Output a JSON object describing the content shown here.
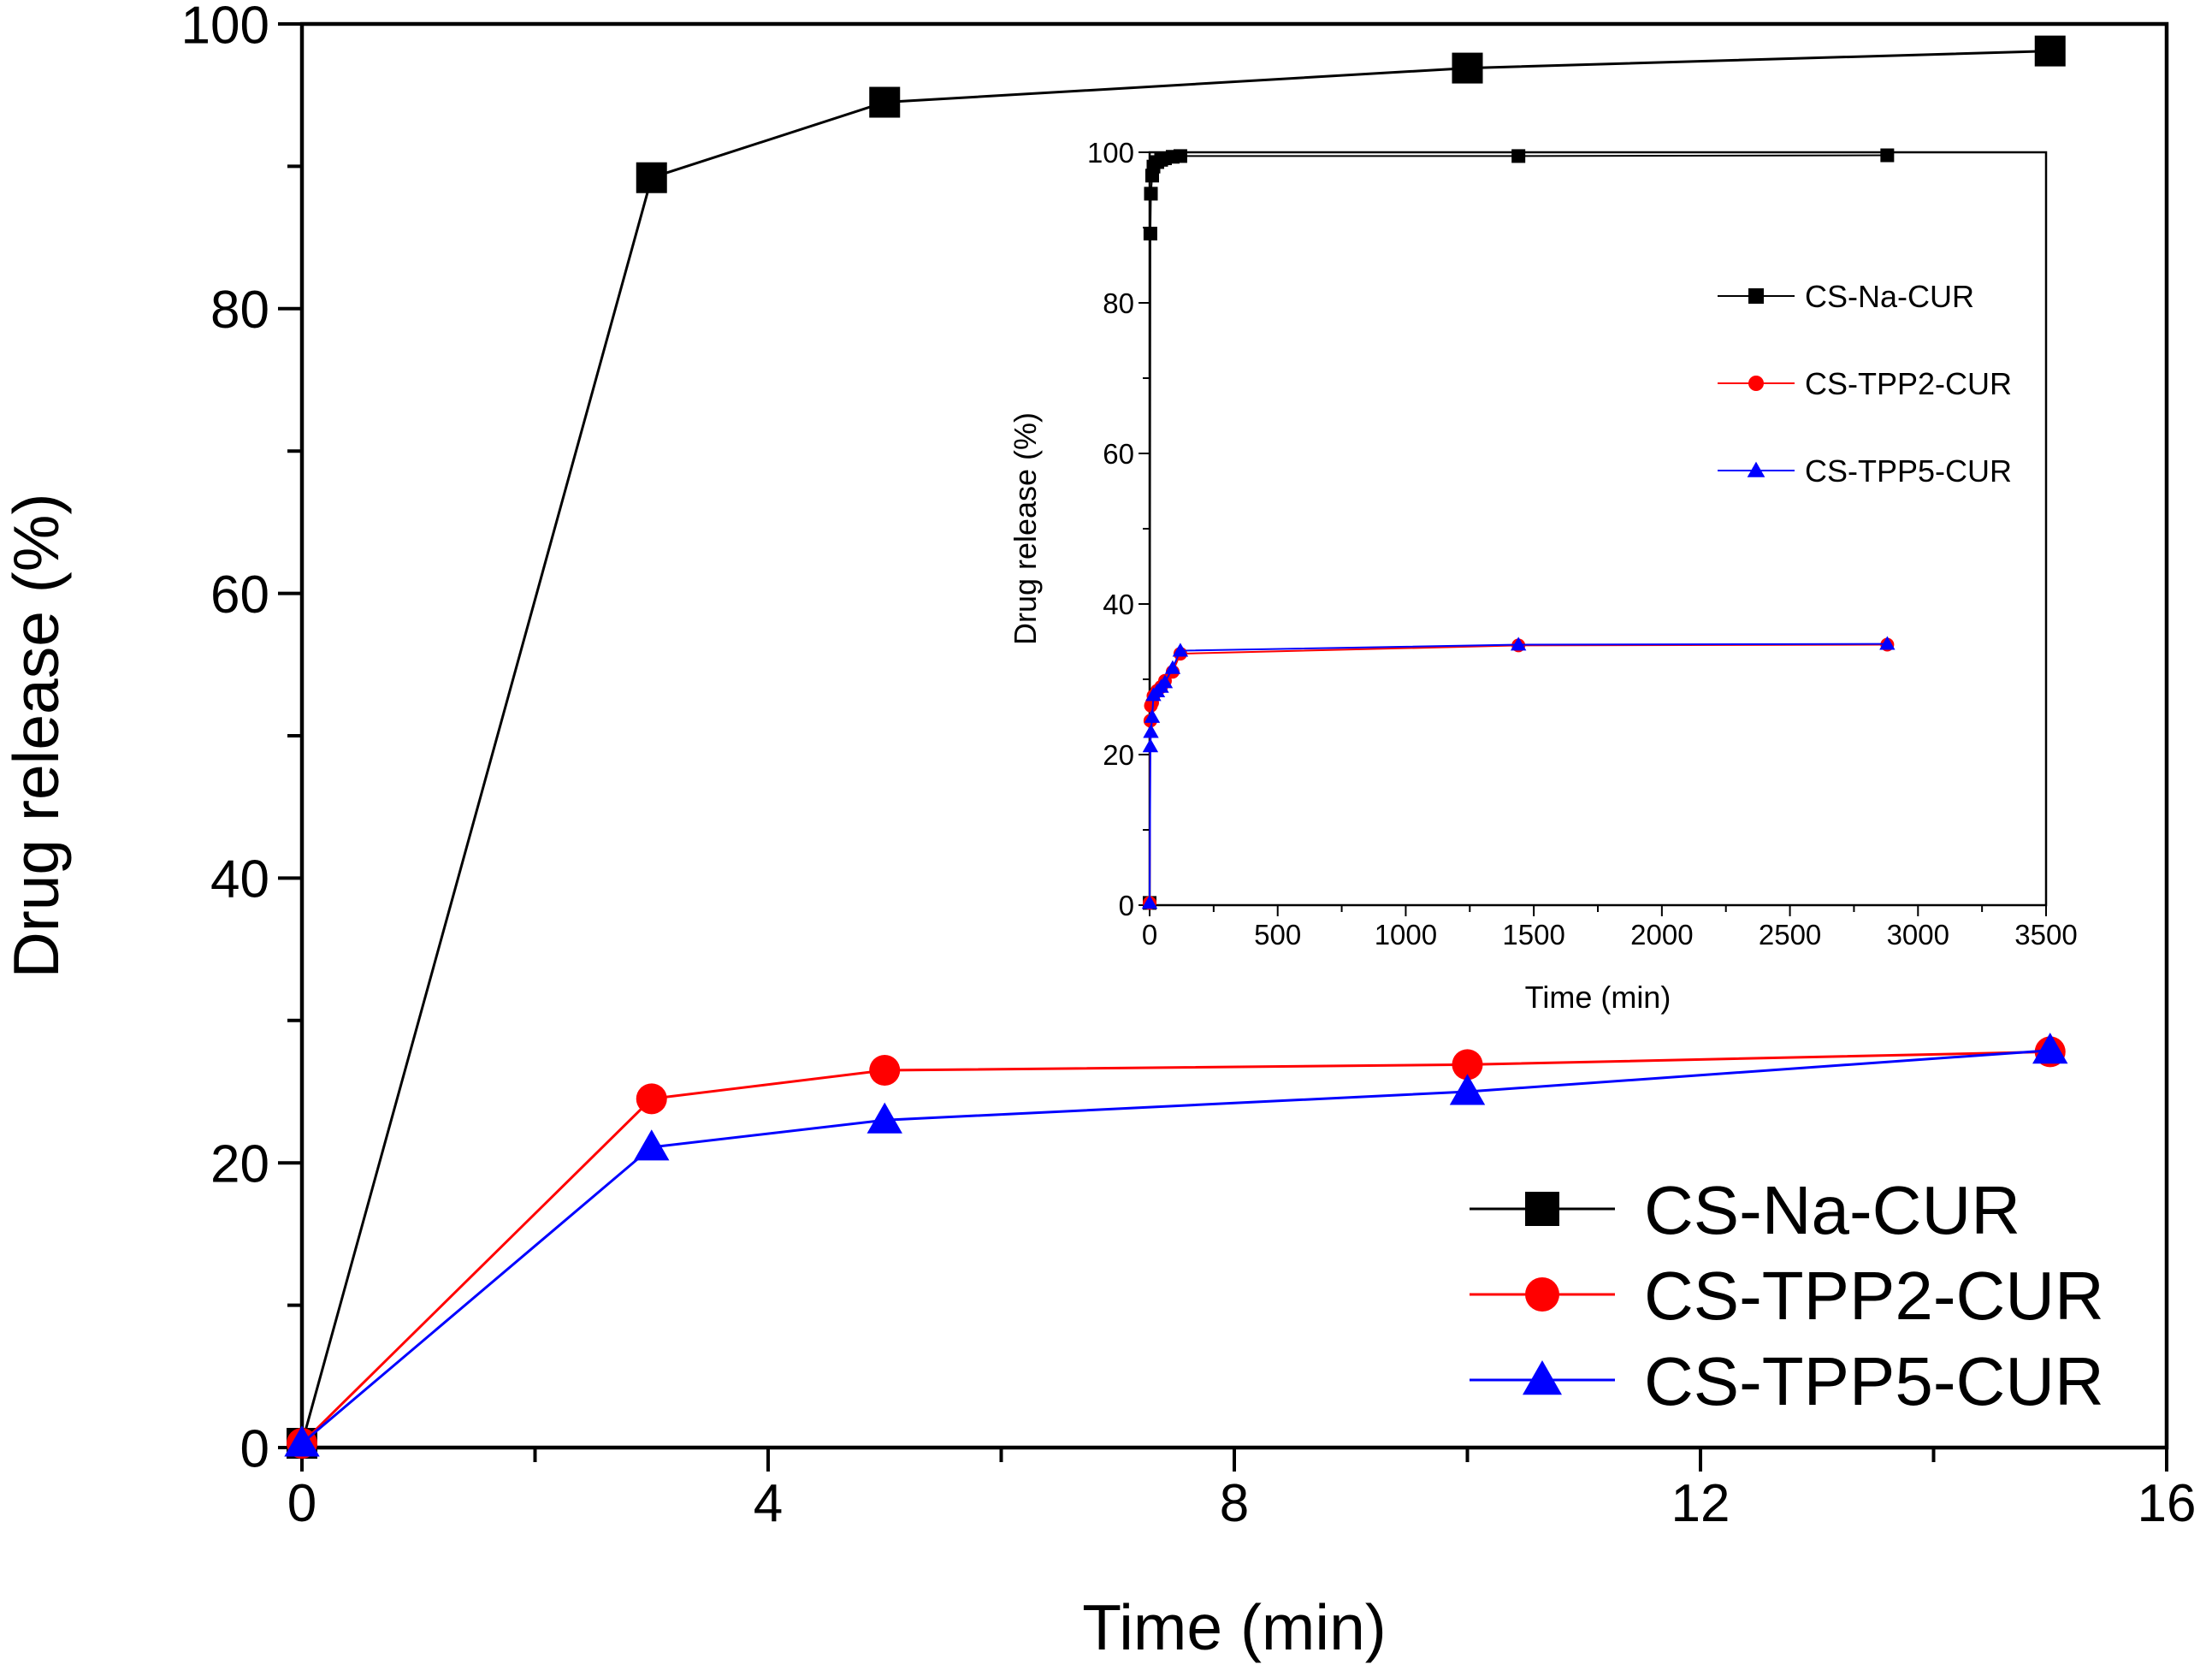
{
  "chart_data": [
    {
      "type": "line",
      "xlabel": "Time (min)",
      "ylabel": "Drug release (%)",
      "xlim": [
        0,
        16
      ],
      "ylim": [
        0,
        100
      ],
      "x_ticks": [
        0,
        4,
        8,
        12,
        16
      ],
      "y_ticks": [
        0,
        20,
        40,
        60,
        80,
        100
      ],
      "grid": false,
      "legend_position": "bottom-right",
      "series": [
        {
          "name": "CS-Na-CUR",
          "color": "#000000",
          "marker": "square",
          "x": [
            0,
            3,
            5,
            10,
            15
          ],
          "y": [
            0.3,
            89.2,
            94.5,
            96.9,
            98.1
          ]
        },
        {
          "name": "CS-TPP2-CUR",
          "color": "#ff0000",
          "marker": "circle",
          "x": [
            0,
            3,
            5,
            10,
            15
          ],
          "y": [
            0.3,
            24.5,
            26.5,
            26.9,
            27.8
          ]
        },
        {
          "name": "CS-TPP5-CUR",
          "color": "#0000ff",
          "marker": "triangle",
          "x": [
            0,
            3,
            5,
            10,
            15
          ],
          "y": [
            0.3,
            21.1,
            23.0,
            25.0,
            27.9
          ]
        }
      ]
    },
    {
      "type": "line",
      "role": "inset",
      "xlabel": "Time (min)",
      "ylabel": "Drug release (%)",
      "xlim": [
        0,
        3500
      ],
      "ylim": [
        0,
        100
      ],
      "x_ticks": [
        0,
        500,
        1000,
        1500,
        2000,
        2500,
        3000,
        3500
      ],
      "y_ticks": [
        0,
        20,
        40,
        60,
        80,
        100
      ],
      "grid": false,
      "legend_position": "top-right",
      "series": [
        {
          "name": "CS-Na-CUR",
          "color": "#000000",
          "marker": "square",
          "x": [
            0,
            3,
            5,
            10,
            15,
            30,
            45,
            60,
            90,
            120,
            1440,
            2880
          ],
          "y": [
            0.3,
            89.2,
            94.5,
            96.9,
            98.1,
            98.7,
            99.0,
            99.2,
            99.4,
            99.5,
            99.5,
            99.6
          ]
        },
        {
          "name": "CS-TPP2-CUR",
          "color": "#ff0000",
          "marker": "circle",
          "x": [
            0,
            3,
            5,
            10,
            15,
            30,
            45,
            60,
            90,
            120,
            1440,
            2880
          ],
          "y": [
            0.3,
            24.5,
            26.5,
            26.9,
            27.8,
            28.5,
            29.0,
            29.8,
            31.0,
            33.4,
            34.5,
            34.6
          ]
        },
        {
          "name": "CS-TPP5-CUR",
          "color": "#0000ff",
          "marker": "triangle",
          "x": [
            0,
            3,
            5,
            10,
            15,
            30,
            45,
            60,
            90,
            120,
            1440,
            2880
          ],
          "y": [
            0.3,
            21.1,
            23.0,
            25.0,
            27.9,
            28.4,
            29.0,
            29.6,
            31.5,
            33.8,
            34.6,
            34.7
          ]
        }
      ]
    }
  ]
}
